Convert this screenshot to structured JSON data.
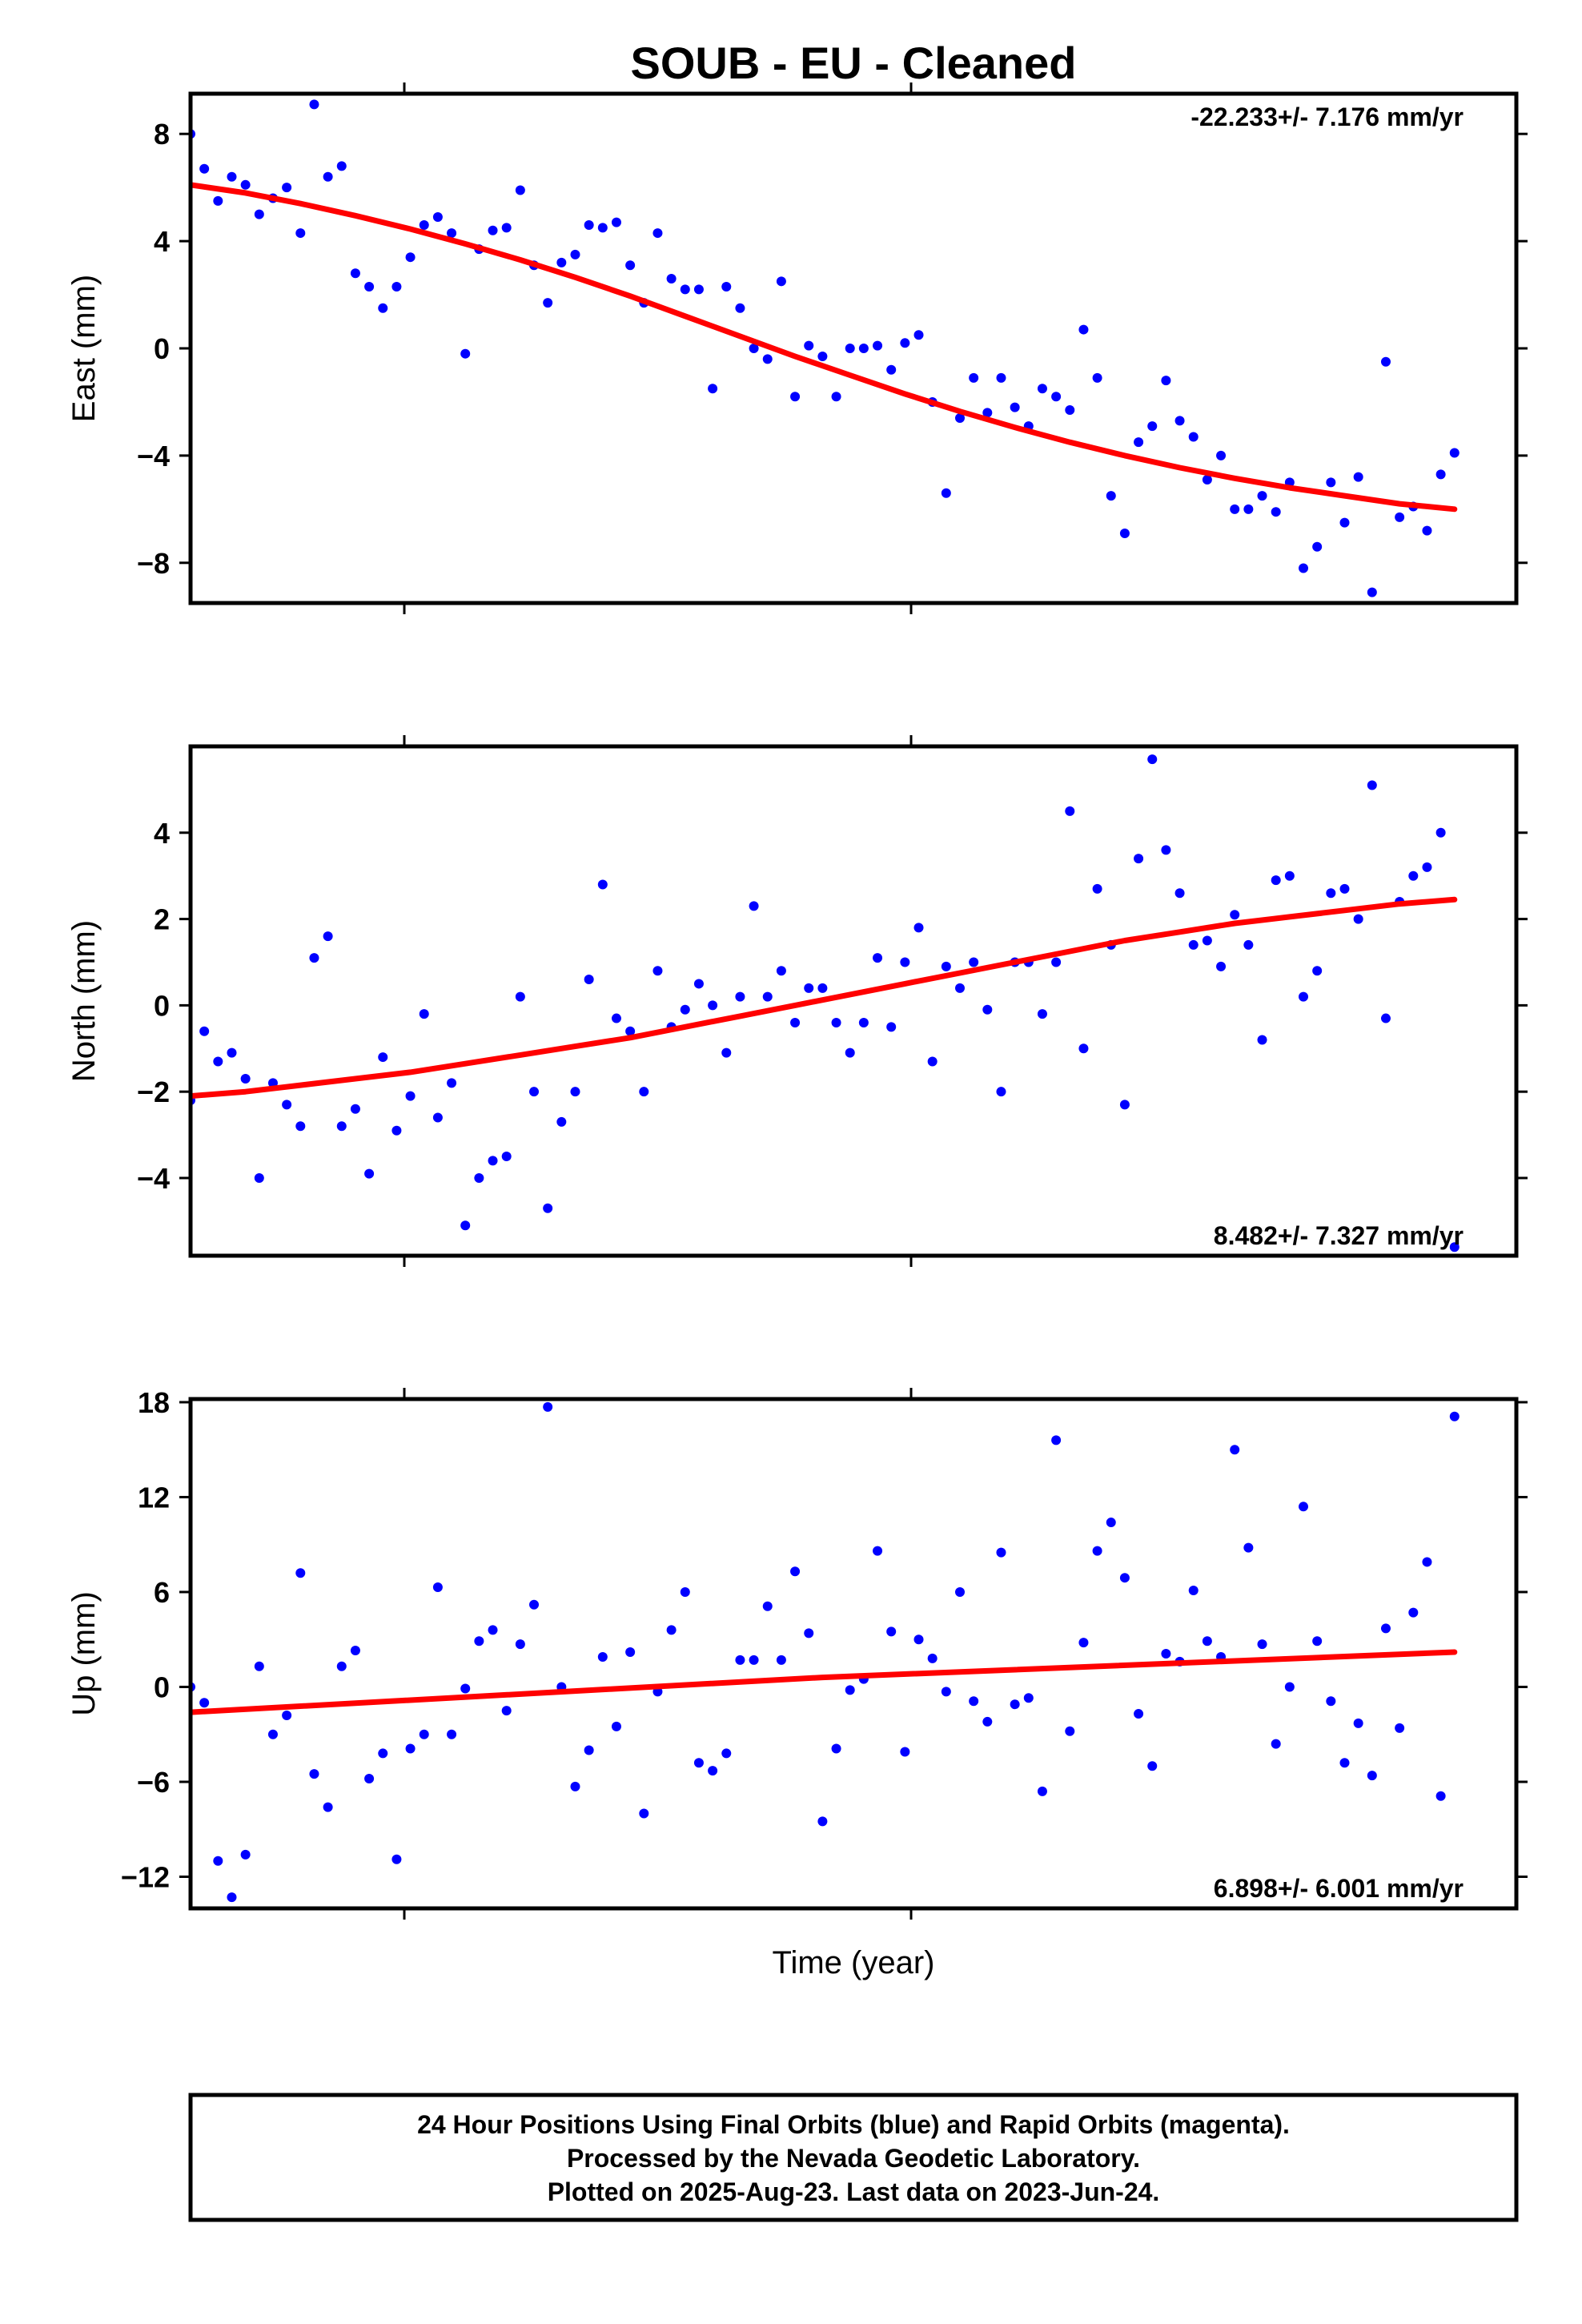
{
  "title": "SOUB  - EU - Cleaned",
  "xlabel": "Time (year)",
  "footer": {
    "line1": "24 Hour Positions Using Final Orbits (blue) and Rapid Orbits (magenta).",
    "line2": "Processed by the Nevada Geodetic Laboratory.",
    "line3": "Plotted on 2025-Aug-23. Last data on 2023-Jun-24."
  },
  "colors": {
    "points": "#0000ff",
    "fit": "#ff0000",
    "frame": "#000000"
  },
  "chart_data": [
    {
      "type": "scatter",
      "component": "east",
      "ylabel": "East (mm)",
      "rate_text": "-22.233+/- 7.176 mm/yr",
      "rate_position": "top-right",
      "ylim": [
        -9.5,
        9.5
      ],
      "yticks": [
        -8,
        -4,
        0,
        4,
        8
      ],
      "ytick_labels": [
        "−8",
        "−4",
        "0",
        "4",
        "8"
      ],
      "xlim": [
        0,
        96.5
      ],
      "x": [
        0,
        1,
        2,
        3,
        4,
        5,
        6,
        7,
        8,
        9,
        10,
        11,
        12,
        13,
        14,
        15,
        16,
        17,
        18,
        19,
        20,
        21,
        22,
        23,
        24,
        25,
        26,
        27,
        28,
        29,
        30,
        31,
        32,
        33,
        34,
        35,
        36,
        37,
        38,
        39,
        40,
        41,
        42,
        43,
        44,
        45,
        46,
        47,
        48,
        49,
        50,
        51,
        52,
        53,
        54,
        55,
        56,
        57,
        58,
        59,
        60,
        61,
        62,
        63,
        64,
        65,
        66,
        67,
        68,
        69,
        70,
        71,
        72,
        73,
        74,
        75,
        76,
        77,
        78,
        79,
        80,
        81,
        82,
        83,
        84,
        85,
        86,
        87,
        88,
        89,
        90,
        91,
        92
      ],
      "y": [
        8.0,
        6.7,
        5.5,
        6.4,
        6.1,
        5.0,
        5.6,
        6.0,
        4.3,
        9.1,
        6.4,
        6.8,
        2.8,
        2.3,
        1.5,
        2.3,
        3.4,
        4.6,
        4.9,
        4.3,
        -0.2,
        3.7,
        4.4,
        4.5,
        5.9,
        3.1,
        1.7,
        3.2,
        3.5,
        4.6,
        4.5,
        4.7,
        3.1,
        1.7,
        4.3,
        2.6,
        2.2,
        2.2,
        -1.5,
        2.3,
        1.5,
        0.0,
        -0.4,
        2.5,
        -1.8,
        0.1,
        -0.3,
        -1.8,
        0.0,
        0.0,
        0.1,
        -0.8,
        0.2,
        0.5,
        -2.0,
        -5.4,
        -2.6,
        -1.1,
        -2.4,
        -1.1,
        -2.2,
        -2.9,
        -1.5,
        -1.8,
        -2.3,
        0.7,
        -1.1,
        -5.5,
        -6.9,
        -3.5,
        -2.9,
        -1.2,
        -2.7,
        -3.3,
        -4.9,
        -4.0,
        -6.0,
        -6.0,
        -5.5,
        -6.1,
        -5.0,
        -8.2,
        -7.4,
        -5.0,
        -6.5,
        -4.8,
        -9.1,
        -0.5,
        -6.3,
        -5.9,
        -6.8,
        -4.7,
        -3.9
      ],
      "fit_x": [
        0,
        4,
        8,
        12,
        16,
        20,
        24,
        28,
        32,
        36,
        40,
        44,
        48,
        52,
        56,
        60,
        64,
        68,
        72,
        76,
        80,
        84,
        88,
        92
      ],
      "fit_y": [
        6.1,
        5.8,
        5.4,
        4.95,
        4.45,
        3.9,
        3.3,
        2.65,
        1.95,
        1.2,
        0.45,
        -0.3,
        -1.0,
        -1.7,
        -2.35,
        -2.95,
        -3.5,
        -4.0,
        -4.45,
        -4.85,
        -5.2,
        -5.5,
        -5.8,
        -6.0
      ]
    },
    {
      "type": "scatter",
      "component": "north",
      "ylabel": "North (mm)",
      "rate_text": "8.482+/- 7.327 mm/yr",
      "rate_position": "bottom-right",
      "ylim": [
        -5.8,
        6.0
      ],
      "yticks": [
        -4,
        -2,
        0,
        2,
        4
      ],
      "ytick_labels": [
        "−4",
        "−2",
        "0",
        "2",
        "4"
      ],
      "xlim": [
        0,
        96.5
      ],
      "x": [
        0,
        1,
        2,
        3,
        4,
        5,
        6,
        7,
        8,
        9,
        10,
        11,
        12,
        13,
        14,
        15,
        16,
        17,
        18,
        19,
        20,
        21,
        22,
        23,
        24,
        25,
        26,
        27,
        28,
        29,
        30,
        31,
        32,
        33,
        34,
        35,
        36,
        37,
        38,
        39,
        40,
        41,
        42,
        43,
        44,
        45,
        46,
        47,
        48,
        49,
        50,
        51,
        52,
        53,
        54,
        55,
        56,
        57,
        58,
        59,
        60,
        61,
        62,
        63,
        64,
        65,
        66,
        67,
        68,
        69,
        70,
        71,
        72,
        73,
        74,
        75,
        76,
        77,
        78,
        79,
        80,
        81,
        82,
        83,
        84,
        85,
        86,
        87,
        88,
        89,
        90,
        91,
        92
      ],
      "y": [
        -2.2,
        -0.6,
        -1.3,
        -1.1,
        -1.7,
        -4.0,
        -1.8,
        -2.3,
        -2.8,
        1.1,
        1.6,
        -2.8,
        -2.4,
        -3.9,
        -1.2,
        -2.9,
        -2.1,
        -0.2,
        -2.6,
        -1.8,
        -5.1,
        -4.0,
        -3.6,
        -3.5,
        0.2,
        -2.0,
        -4.7,
        -2.7,
        -2.0,
        0.6,
        2.8,
        -0.3,
        -0.6,
        -2.0,
        0.8,
        -0.5,
        -0.1,
        0.5,
        0.0,
        -1.1,
        0.2,
        2.3,
        0.2,
        0.8,
        -0.4,
        0.4,
        0.4,
        -0.4,
        -1.1,
        -0.4,
        1.1,
        -0.5,
        1.0,
        1.8,
        -1.3,
        0.9,
        0.4,
        1.0,
        -0.1,
        -2.0,
        1.0,
        1.0,
        -0.2,
        1.0,
        4.5,
        -1.0,
        2.7,
        1.4,
        -2.3,
        3.4,
        5.7,
        3.6,
        2.6,
        1.4,
        1.5,
        0.9,
        2.1,
        1.4,
        -0.8,
        2.9,
        3.0,
        0.2,
        0.8,
        2.6,
        2.7,
        2.0,
        5.1,
        -0.3,
        2.4,
        3.0,
        3.2,
        4.0,
        -5.6
      ],
      "fit_x": [
        0,
        4,
        8,
        12,
        16,
        20,
        24,
        28,
        32,
        36,
        40,
        44,
        48,
        52,
        56,
        60,
        64,
        68,
        72,
        76,
        80,
        84,
        88,
        92
      ],
      "fit_y": [
        -2.1,
        -2.0,
        -1.85,
        -1.7,
        -1.55,
        -1.35,
        -1.15,
        -0.95,
        -0.75,
        -0.5,
        -0.25,
        0.0,
        0.25,
        0.5,
        0.75,
        1.0,
        1.25,
        1.5,
        1.7,
        1.9,
        2.05,
        2.2,
        2.35,
        2.45
      ]
    },
    {
      "type": "scatter",
      "component": "up",
      "ylabel": "Up (mm)",
      "rate_text": "6.898+/- 6.001 mm/yr",
      "rate_position": "bottom-right",
      "ylim": [
        -14,
        18.2
      ],
      "yticks": [
        -12,
        -6,
        0,
        6,
        12,
        18
      ],
      "ytick_labels": [
        "−12",
        "−6",
        "0",
        "6",
        "12",
        "18"
      ],
      "xlim": [
        0,
        96.5
      ],
      "x": [
        0,
        1,
        2,
        3,
        4,
        5,
        6,
        7,
        8,
        9,
        10,
        11,
        12,
        13,
        14,
        15,
        16,
        17,
        18,
        19,
        20,
        21,
        22,
        23,
        24,
        25,
        26,
        27,
        28,
        29,
        30,
        31,
        32,
        33,
        34,
        35,
        36,
        37,
        38,
        39,
        40,
        41,
        42,
        43,
        44,
        45,
        46,
        47,
        48,
        49,
        50,
        51,
        52,
        53,
        54,
        55,
        56,
        57,
        58,
        59,
        60,
        61,
        62,
        63,
        64,
        65,
        66,
        67,
        68,
        69,
        70,
        71,
        72,
        73,
        74,
        75,
        76,
        77,
        78,
        79,
        80,
        81,
        82,
        83,
        84,
        85,
        86,
        87,
        88,
        89,
        90,
        91,
        92
      ],
      "y": [
        0.0,
        -1.0,
        -11.0,
        -13.3,
        -10.6,
        1.3,
        -3.0,
        -1.8,
        7.2,
        -5.5,
        -7.6,
        1.3,
        2.3,
        -5.8,
        -4.2,
        -10.9,
        -3.9,
        -3.0,
        6.3,
        -3.0,
        -0.1,
        2.9,
        3.6,
        -1.5,
        2.7,
        5.2,
        17.7,
        0.0,
        -6.3,
        -4.0,
        1.9,
        -2.5,
        2.2,
        -8.0,
        -0.3,
        3.6,
        6.0,
        -4.8,
        -5.3,
        -4.2,
        1.7,
        1.7,
        5.1,
        1.7,
        7.3,
        3.4,
        -8.5,
        -3.9,
        -0.2,
        0.5,
        8.6,
        3.5,
        -4.1,
        3.0,
        1.8,
        -0.3,
        6.0,
        -0.9,
        -2.2,
        8.5,
        -1.1,
        -0.7,
        -6.6,
        15.6,
        -2.8,
        2.8,
        8.6,
        10.4,
        6.9,
        -1.7,
        -5.0,
        2.1,
        1.6,
        6.1,
        2.9,
        1.9,
        15.0,
        8.8,
        2.7,
        -3.6,
        0.0,
        11.4,
        2.9,
        -0.9,
        -4.8,
        -2.3,
        -5.6,
        3.7,
        -2.6,
        4.7,
        7.9,
        -6.9,
        17.1
      ],
      "fit_x": [
        0,
        46,
        92
      ],
      "fit_y": [
        -1.6,
        0.6,
        2.2
      ]
    }
  ]
}
